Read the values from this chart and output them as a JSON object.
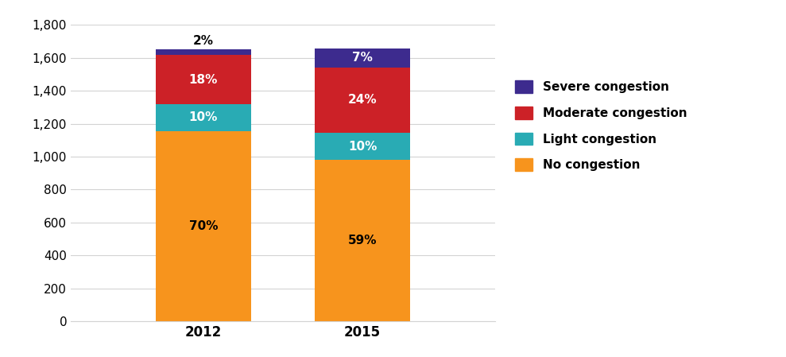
{
  "years": [
    "2012",
    "2015"
  ],
  "no_congestion": [
    1155,
    979
  ],
  "light_congestion": [
    165,
    166
  ],
  "moderate_congestion": [
    297,
    398
  ],
  "severe_congestion": [
    33,
    116
  ],
  "no_congestion_pct": [
    "70%",
    "59%"
  ],
  "light_congestion_pct": [
    "10%",
    "10%"
  ],
  "moderate_congestion_pct": [
    "18%",
    "24%"
  ],
  "severe_congestion_pct": [
    "2%",
    "7%"
  ],
  "colors": {
    "no_congestion": "#F7941D",
    "light_congestion": "#29ABB4",
    "moderate_congestion": "#CC2127",
    "severe_congestion": "#3D2B8E"
  },
  "ylim": [
    0,
    1800
  ],
  "yticks": [
    0,
    200,
    400,
    600,
    800,
    1000,
    1200,
    1400,
    1600,
    1800
  ],
  "ytick_labels": [
    "0",
    "200",
    "400",
    "600",
    "800",
    "1,000",
    "1,200",
    "1,400",
    "1,600",
    "1,800"
  ],
  "bar_width": 0.18,
  "background_color": "#ffffff"
}
